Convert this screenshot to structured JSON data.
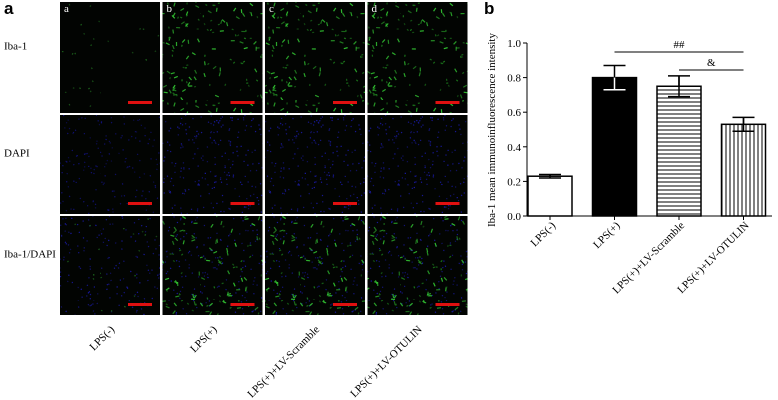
{
  "panel_a": {
    "label": "a",
    "columns": [
      "a",
      "b",
      "c",
      "d"
    ],
    "rows": [
      "Iba-1",
      "DAPI",
      "Iba-1/DAPI"
    ],
    "groups": [
      "LPS(-)",
      "LPS(+)",
      "LPS(+)+LV-Scramble",
      "LPS(+)+LV-OTULIN"
    ]
  },
  "chart_data": {
    "type": "bar",
    "panel_label": "b",
    "ylabel": "Iba-1 mean immunoinfluorescence intensity",
    "categories": [
      "LPS(-)",
      "LPS(+)",
      "LPS(+)+LV-Scramble",
      "LPS(+)+LV-OTULIN"
    ],
    "values": [
      0.23,
      0.8,
      0.75,
      0.53
    ],
    "errors": [
      0.01,
      0.07,
      0.06,
      0.04
    ],
    "colors": [
      "#ffffff",
      "#000000",
      "#ffffff",
      "#ffffff"
    ],
    "hatch": [
      "none",
      "none",
      "horizontal",
      "vertical"
    ],
    "ylim": [
      0,
      1.0
    ],
    "yticks": [
      {
        "value": 0,
        "label": "0.0"
      },
      0.2,
      0.4,
      0.6,
      0.8,
      {
        "value": 1.0,
        "label": "1.0"
      }
    ],
    "annotations": [
      {
        "text": "##"
      },
      {
        "text": "&"
      }
    ]
  }
}
